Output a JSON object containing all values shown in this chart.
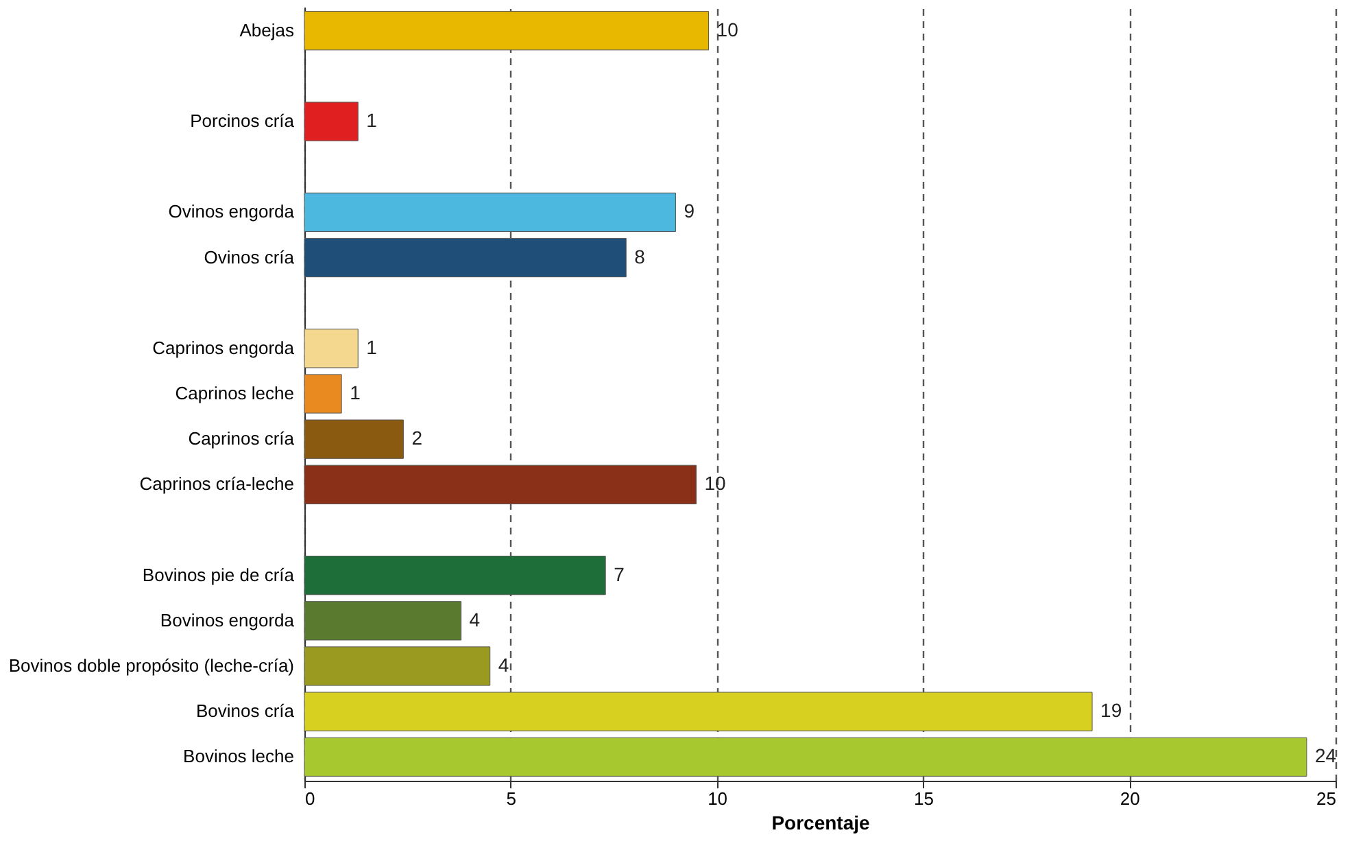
{
  "chart_data": {
    "type": "bar",
    "orientation": "horizontal",
    "xlabel": "Porcentaje",
    "categories": [
      "Abejas",
      null,
      "Porcinos cría",
      null,
      "Ovinos engorda",
      "Ovinos cría",
      null,
      "Caprinos engorda",
      "Caprinos leche",
      "Caprinos cría",
      "Caprinos cría-leche",
      null,
      "Bovinos pie de cría",
      "Bovinos engorda",
      "Bovinos doble propósito (leche-cría)",
      "Bovinos cría",
      "Bovinos leche"
    ],
    "values": [
      9.8,
      null,
      1.3,
      null,
      9.0,
      7.8,
      null,
      1.3,
      0.9,
      2.4,
      9.5,
      null,
      7.3,
      3.8,
      4.5,
      19.1,
      24.3
    ],
    "value_labels": [
      "10",
      null,
      "1",
      null,
      "9",
      "8",
      null,
      "1",
      "1",
      "2",
      "10",
      null,
      "7",
      "4",
      "4",
      "19",
      "24"
    ],
    "colors": [
      "#e8b800",
      "#000000",
      "#e02020",
      "#000000",
      "#4cb8e0",
      "#1f4e79",
      "#000000",
      "#f5d890",
      "#e88a20",
      "#8a5a10",
      "#8a3018",
      "#000000",
      "#1e6e3a",
      "#5a7a30",
      "#9a9a20",
      "#d8d020",
      "#a8c830"
    ],
    "xlim": [
      0,
      25
    ],
    "xticks": [
      0,
      5,
      10,
      15,
      20,
      25
    ],
    "grid": "x",
    "line_style": "dashed"
  }
}
